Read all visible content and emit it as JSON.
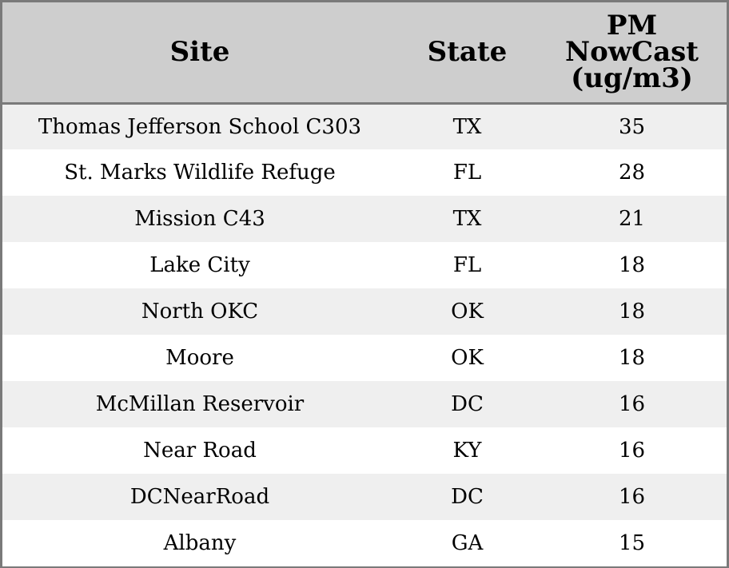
{
  "chart_data": {
    "type": "table",
    "columns": [
      "Site",
      "State",
      "PM NowCast (ug/m3)"
    ],
    "header_lines": [
      [
        "Site"
      ],
      [
        "State"
      ],
      [
        "PM",
        "NowCast",
        "(ug/m3)"
      ]
    ],
    "rows": [
      [
        "Thomas Jefferson School C303",
        "TX",
        "35"
      ],
      [
        "St. Marks Wildlife Refuge",
        "FL",
        "28"
      ],
      [
        "Mission C43",
        "TX",
        "21"
      ],
      [
        "Lake City",
        "FL",
        "18"
      ],
      [
        "North OKC",
        "OK",
        "18"
      ],
      [
        "Moore",
        "OK",
        "18"
      ],
      [
        "McMillan Reservoir",
        "DC",
        "16"
      ],
      [
        "Near Road",
        "KY",
        "16"
      ],
      [
        "DCNearRoad",
        "DC",
        "16"
      ],
      [
        "Albany",
        "GA",
        "15"
      ]
    ],
    "colors": {
      "header_bg": "#cecece",
      "row_alt_bg": "#efefef",
      "row_bg": "#ffffff",
      "border": "#7a7a7a"
    }
  }
}
